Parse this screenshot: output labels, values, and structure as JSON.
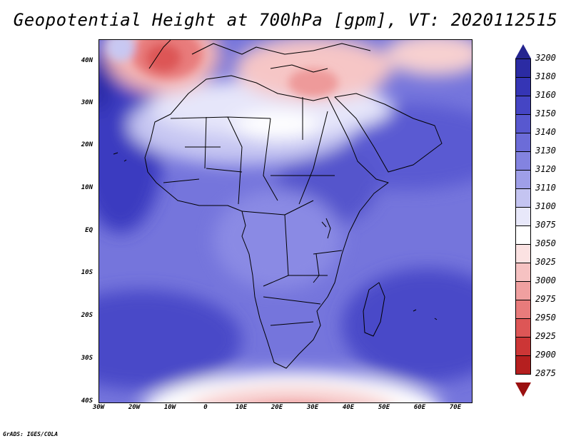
{
  "title": "Geopotential Height at 700hPa [gpm], VT: 2020112515",
  "credit": "GrADS: IGES/COLA",
  "lat_labels": [
    "40N",
    "30N",
    "20N",
    "10N",
    "EQ",
    "10S",
    "20S",
    "30S",
    "40S"
  ],
  "lon_labels": [
    "30W",
    "20W",
    "10W",
    "0",
    "10E",
    "20E",
    "30E",
    "40E",
    "50E",
    "60E",
    "70E"
  ],
  "colorbar": {
    "labels": [
      "3200",
      "3180",
      "3160",
      "3150",
      "3140",
      "3130",
      "3120",
      "3110",
      "3100",
      "3075",
      "3050",
      "3025",
      "3000",
      "2975",
      "2950",
      "2925",
      "2900",
      "2875"
    ],
    "colors": [
      "#24248f",
      "#2b2ba3",
      "#3535b5",
      "#4545c4",
      "#5858cf",
      "#6c6cd8",
      "#8383e0",
      "#9f9fe8",
      "#c4c4f1",
      "#e8e8fa",
      "#ffffff",
      "#fbe2e2",
      "#f6c2c2",
      "#f0a0a0",
      "#e87b7b",
      "#dd5656",
      "#cc3636",
      "#b51f1f",
      "#9a1010"
    ]
  }
}
